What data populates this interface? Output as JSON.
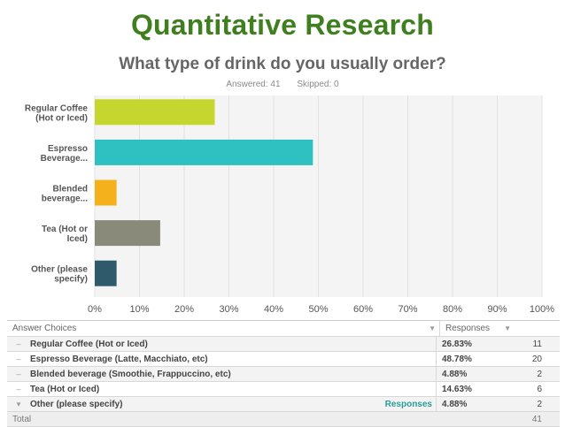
{
  "slide": {
    "title": "Quantitative Research"
  },
  "survey": {
    "question": "What type of drink do you usually order?",
    "answered": "Answered: 41",
    "skipped": "Skipped: 0"
  },
  "chart_data": {
    "type": "bar",
    "orientation": "horizontal",
    "categories": [
      [
        "Regular Coffee",
        "(Hot or Iced)"
      ],
      [
        "Espresso",
        "Beverage..."
      ],
      [
        "Blended",
        "beverage..."
      ],
      [
        "Tea (Hot or",
        "Iced)"
      ],
      [
        "Other (please",
        "specify)"
      ]
    ],
    "values": [
      26.83,
      48.78,
      4.88,
      14.63,
      4.88
    ],
    "colors": [
      "#c5d62e",
      "#2fc0c2",
      "#f5b11b",
      "#8a8a7a",
      "#2e5a6b"
    ],
    "xlim": [
      0,
      100
    ],
    "x_ticks": [
      "0%",
      "10%",
      "20%",
      "30%",
      "40%",
      "50%",
      "60%",
      "70%",
      "80%",
      "90%",
      "100%"
    ],
    "grid": true
  },
  "table": {
    "headers": {
      "choices": "Answer Choices",
      "responses": "Responses"
    },
    "rows": [
      {
        "choice": "Regular Coffee (Hot or Iced)",
        "pct": "26.83%",
        "count": "11",
        "link": ""
      },
      {
        "choice": "Espresso Beverage (Latte, Macchiato, etc)",
        "pct": "48.78%",
        "count": "20",
        "link": ""
      },
      {
        "choice": "Blended beverage (Smoothie, Frappuccino, etc)",
        "pct": "4.88%",
        "count": "2",
        "link": ""
      },
      {
        "choice": "Tea (Hot or Iced)",
        "pct": "14.63%",
        "count": "6",
        "link": ""
      },
      {
        "choice": "Other (please specify)",
        "pct": "4.88%",
        "count": "2",
        "link": "Responses"
      }
    ],
    "total_label": "Total",
    "total_count": "41"
  }
}
